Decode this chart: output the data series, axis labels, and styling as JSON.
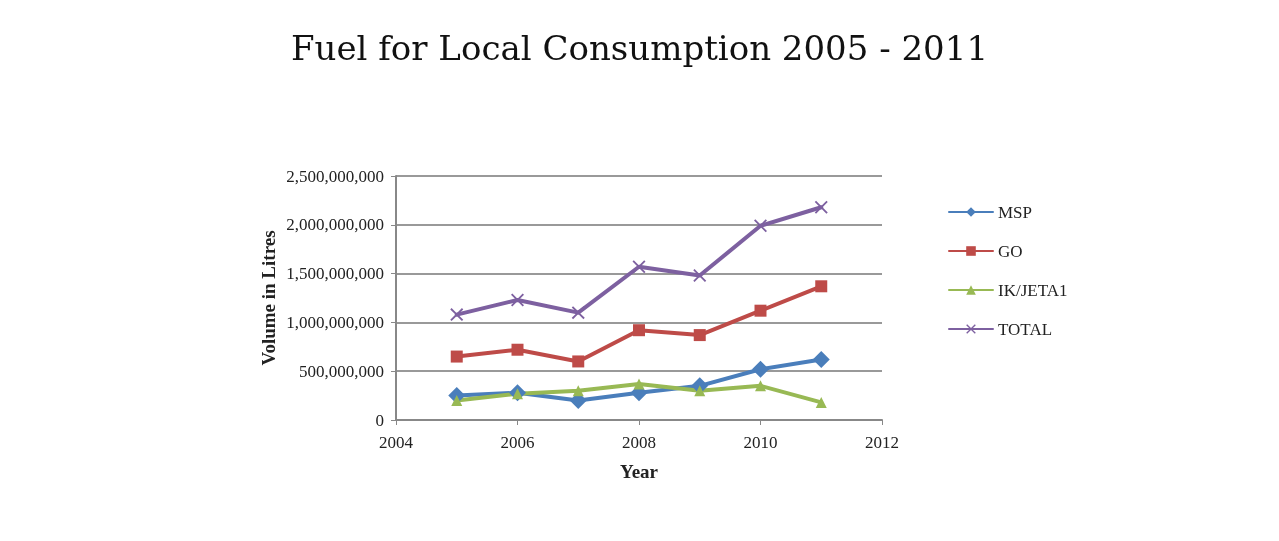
{
  "chart_data": {
    "type": "line",
    "title": "Fuel for Local Consumption 2005 - 2011",
    "xlabel": "Year",
    "ylabel": "Volume in Litres",
    "x": [
      2005,
      2006,
      2007,
      2008,
      2009,
      2010,
      2011
    ],
    "series": [
      {
        "name": "MSP",
        "color": "#4a7ebb",
        "marker": "diamond",
        "values": [
          250000000,
          280000000,
          200000000,
          280000000,
          350000000,
          520000000,
          620000000
        ]
      },
      {
        "name": "GO",
        "color": "#be4b48",
        "marker": "square",
        "values": [
          650000000,
          720000000,
          600000000,
          920000000,
          870000000,
          1120000000,
          1370000000
        ]
      },
      {
        "name": "IK/JETA1",
        "color": "#98b954",
        "marker": "triangle",
        "values": [
          200000000,
          270000000,
          300000000,
          370000000,
          300000000,
          350000000,
          180000000
        ]
      },
      {
        "name": "TOTAL",
        "color": "#7d60a0",
        "marker": "cross",
        "values": [
          1080000000,
          1230000000,
          1100000000,
          1570000000,
          1480000000,
          1990000000,
          2180000000
        ]
      }
    ],
    "xlim": [
      2004,
      2012
    ],
    "xticks": [
      2004,
      2006,
      2008,
      2010,
      2012
    ],
    "ylim": [
      0,
      2500000000
    ],
    "yticks": [
      0,
      {
        "value": 500000000,
        "label": "500,000,000"
      },
      {
        "value": 1000000000,
        "label": "1,000,000,000"
      },
      {
        "value": 1500000000,
        "label": "1,500,000,000"
      },
      {
        "value": 2000000000,
        "label": "2,000,000,000"
      },
      {
        "value": 2500000000,
        "label": "2,500,000,000"
      }
    ],
    "grid": "y",
    "legend": "right"
  }
}
